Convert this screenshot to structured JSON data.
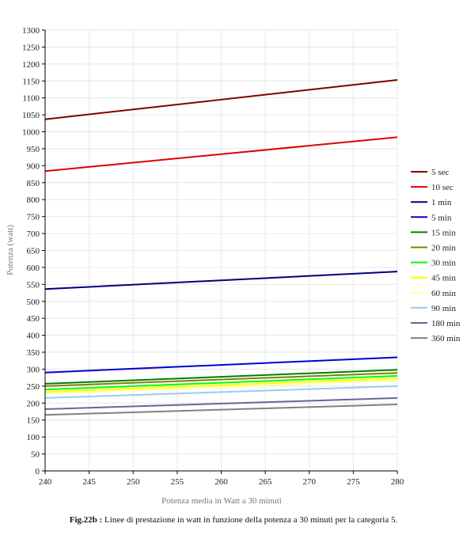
{
  "chart_data": {
    "type": "line",
    "xlabel": "Potenza media in Watt a 30 minuti",
    "ylabel": "Potenza (watt)",
    "xlim": [
      240,
      280
    ],
    "ylim": [
      0,
      1300
    ],
    "x_ticks": [
      240,
      245,
      250,
      255,
      260,
      265,
      270,
      275,
      280
    ],
    "y_ticks": [
      0,
      50,
      100,
      150,
      200,
      250,
      300,
      350,
      400,
      450,
      500,
      550,
      600,
      650,
      700,
      750,
      800,
      850,
      900,
      950,
      1000,
      1050,
      1100,
      1150,
      1200,
      1250,
      1300
    ],
    "grid": true,
    "legend_position": "right",
    "series": [
      {
        "name": "5 sec",
        "color": "#800000",
        "x": [
          240,
          280
        ],
        "y": [
          1037,
          1153
        ]
      },
      {
        "name": "10 sec",
        "color": "#e00000",
        "x": [
          240,
          280
        ],
        "y": [
          884,
          984
        ]
      },
      {
        "name": "1 min",
        "color": "#000080",
        "x": [
          240,
          280
        ],
        "y": [
          536,
          588
        ]
      },
      {
        "name": "5 min",
        "color": "#0000d0",
        "x": [
          240,
          280
        ],
        "y": [
          290,
          335
        ]
      },
      {
        "name": "15 min",
        "color": "#008000",
        "x": [
          240,
          280
        ],
        "y": [
          257,
          298
        ]
      },
      {
        "name": "20 min",
        "color": "#808000",
        "x": [
          240,
          280
        ],
        "y": [
          250,
          289
        ]
      },
      {
        "name": "30 min",
        "color": "#00ff00",
        "x": [
          240,
          280
        ],
        "y": [
          240,
          280
        ]
      },
      {
        "name": "45 min",
        "color": "#ffff00",
        "x": [
          240,
          280
        ],
        "y": [
          233,
          273
        ]
      },
      {
        "name": "60 min",
        "color": "#ffffa0",
        "x": [
          240,
          280
        ],
        "y": [
          228,
          267
        ]
      },
      {
        "name": "90 min",
        "color": "#99ccee",
        "x": [
          240,
          280
        ],
        "y": [
          215,
          250
        ]
      },
      {
        "name": "180 min",
        "color": "#666699",
        "x": [
          240,
          280
        ],
        "y": [
          182,
          215
        ]
      },
      {
        "name": "360 min",
        "color": "#808080",
        "x": [
          240,
          280
        ],
        "y": [
          165,
          196
        ]
      }
    ]
  },
  "caption": {
    "label": "Fig.22b :",
    "text": " Linee di prestazione in watt in funzione della potenza a 30 minuti per la categoria 5."
  }
}
